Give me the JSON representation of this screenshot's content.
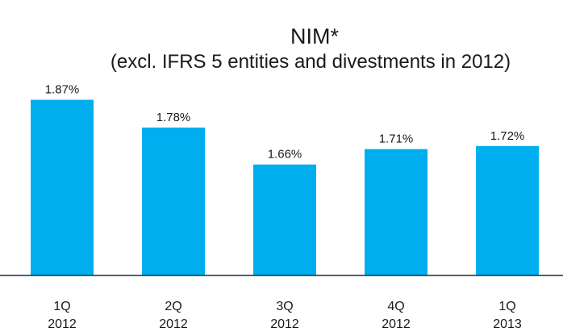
{
  "chart_data": {
    "type": "bar",
    "title": "NIM*",
    "subtitle": "(excl. IFRS 5 entities and divestments in 2012)",
    "categories": [
      "1Q 2012",
      "2Q 2012",
      "3Q 2012",
      "4Q 2012",
      "1Q 2013"
    ],
    "values": [
      1.87,
      1.78,
      1.66,
      1.71,
      1.72
    ],
    "value_labels": [
      "1.87%",
      "1.78%",
      "1.66%",
      "1.71%",
      "1.72%"
    ],
    "color": "#00aeef",
    "ylim": [
      1.3,
      1.95
    ]
  }
}
